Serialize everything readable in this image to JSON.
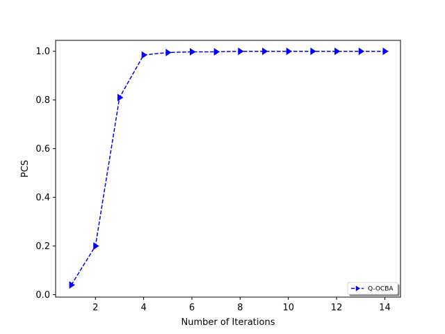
{
  "chart_data": {
    "type": "line",
    "title": "",
    "xlabel": "Number of Iterations",
    "ylabel": "PCS",
    "xlim": [
      0.35,
      14.65
    ],
    "ylim": [
      -0.01,
      1.045
    ],
    "xticks": [
      2,
      4,
      6,
      8,
      10,
      12,
      14
    ],
    "xtick_labels": [
      "2",
      "4",
      "6",
      "8",
      "10",
      "12",
      "14"
    ],
    "yticks": [
      0.0,
      0.2,
      0.4,
      0.6,
      0.8,
      1.0
    ],
    "ytick_labels": [
      "0.0",
      "0.2",
      "0.4",
      "0.6",
      "0.8",
      "1.0"
    ],
    "grid": false,
    "legend_position": "lower-right",
    "series": [
      {
        "name": "Q-OCBA",
        "color": "#0000ff",
        "line_style": "dashed",
        "marker": "triangle-right",
        "x": [
          1,
          2,
          3,
          4,
          5,
          6,
          7,
          8,
          9,
          10,
          11,
          12,
          13,
          14
        ],
        "y": [
          0.04,
          0.2,
          0.81,
          0.985,
          0.995,
          0.998,
          0.998,
          1.0,
          1.0,
          1.0,
          1.0,
          1.0,
          1.0,
          1.0
        ]
      }
    ]
  }
}
